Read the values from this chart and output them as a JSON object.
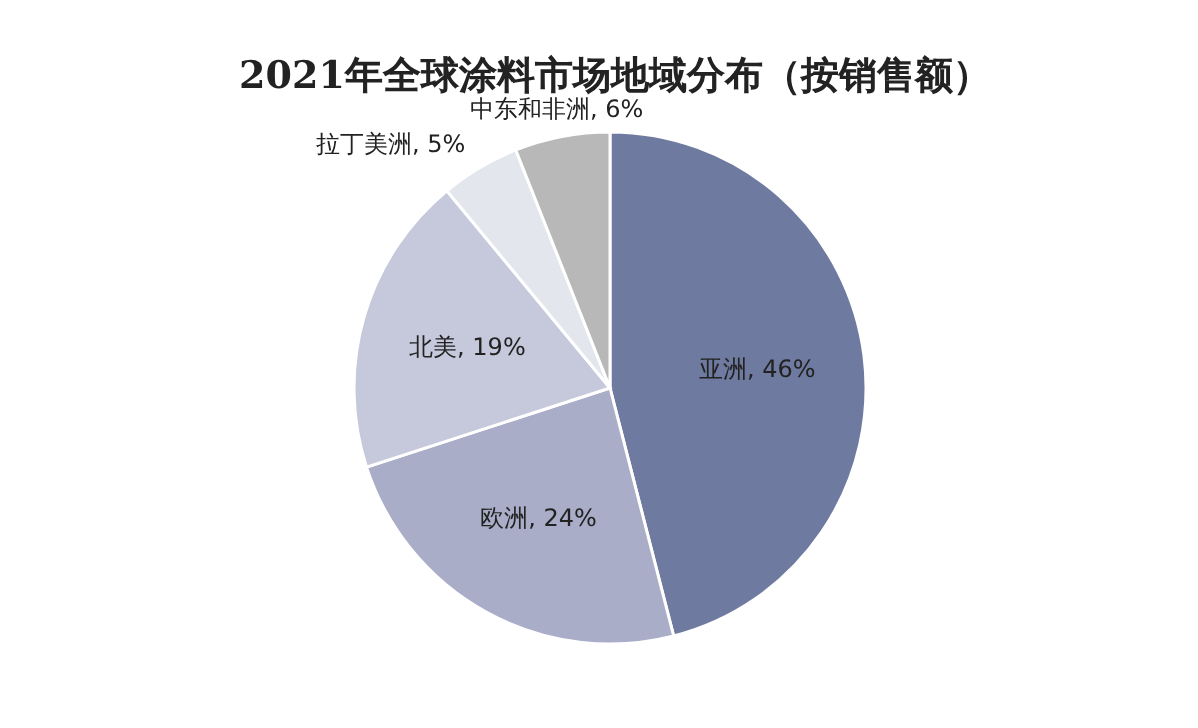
{
  "chart_data": {
    "type": "pie",
    "title": "2021年全球涂料市场地域分布（按销售额）",
    "categories": [
      "亚洲",
      "欧洲",
      "北美",
      "拉丁美洲",
      "中东和非洲"
    ],
    "values": [
      46,
      24,
      19,
      5,
      6
    ],
    "value_labels": [
      "46%",
      "24%",
      "19%",
      "5%",
      "6%"
    ],
    "colors": [
      "#6e7a9f",
      "#a9adc8",
      "#c6c9dc",
      "#e4e6ee",
      "#b8b8b8"
    ]
  }
}
